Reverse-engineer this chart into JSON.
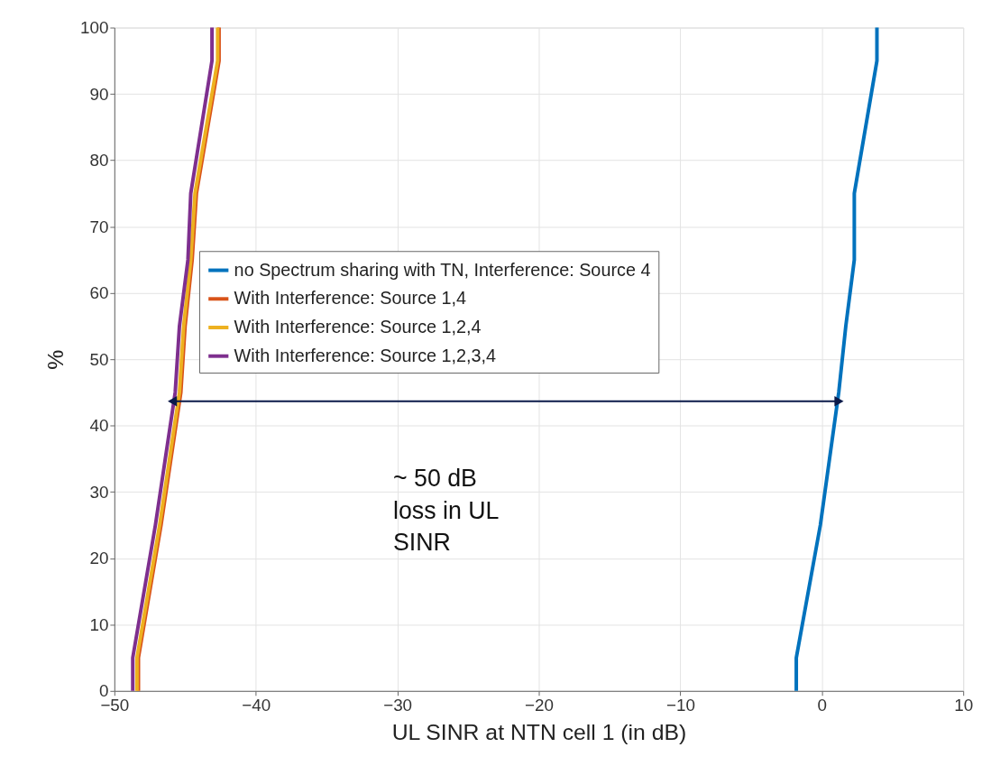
{
  "chart_data": {
    "type": "line",
    "xlabel": "UL SINR at NTN cell 1 (in dB)",
    "ylabel": "%",
    "xlim": [
      -50,
      10
    ],
    "xticks": [
      -50,
      -40,
      -30,
      -20,
      -10,
      0,
      10
    ],
    "ylim": [
      0,
      100
    ],
    "yticks": [
      0,
      10,
      20,
      30,
      40,
      50,
      60,
      70,
      80,
      90,
      100
    ],
    "grid": true,
    "legend": "center",
    "line_style": "solid",
    "marker": "none",
    "series": [
      {
        "name": "no Spectrum sharing with TN, Interference: Source 4",
        "color": "#0072bd",
        "x": [
          -1.8,
          -1.8,
          -0.1,
          1.2,
          1.7,
          2.3,
          2.3,
          3.9,
          3.9
        ],
        "values": [
          0,
          5,
          25,
          45,
          55,
          65,
          75,
          95,
          100
        ]
      },
      {
        "name": "With Interference: Source 1,4",
        "color": "#d95319",
        "x": [
          -48.3,
          -48.3,
          -46.7,
          -45.3,
          -45.0,
          -44.5,
          -44.2,
          -42.6,
          -42.6
        ],
        "values": [
          0,
          5,
          25,
          45,
          55,
          65,
          75,
          95,
          100
        ]
      },
      {
        "name": "With Interference: Source 1,2,4",
        "color": "#edb120",
        "x": [
          -48.4,
          -48.4,
          -46.8,
          -45.4,
          -45.1,
          -44.6,
          -44.3,
          -42.7,
          -42.7
        ],
        "values": [
          0,
          5,
          25,
          45,
          55,
          65,
          75,
          95,
          100
        ]
      },
      {
        "name": "With Interference: Source 1,2,3,4",
        "color": "#7e2f8e",
        "x": [
          -48.7,
          -48.7,
          -47.1,
          -45.7,
          -45.4,
          -44.8,
          -44.6,
          -43.1,
          -43.1
        ],
        "values": [
          0,
          5,
          25,
          45,
          55,
          65,
          75,
          95,
          100
        ]
      }
    ],
    "annotations": [
      "~ 50 dB\nloss in UL\nSINR"
    ]
  }
}
